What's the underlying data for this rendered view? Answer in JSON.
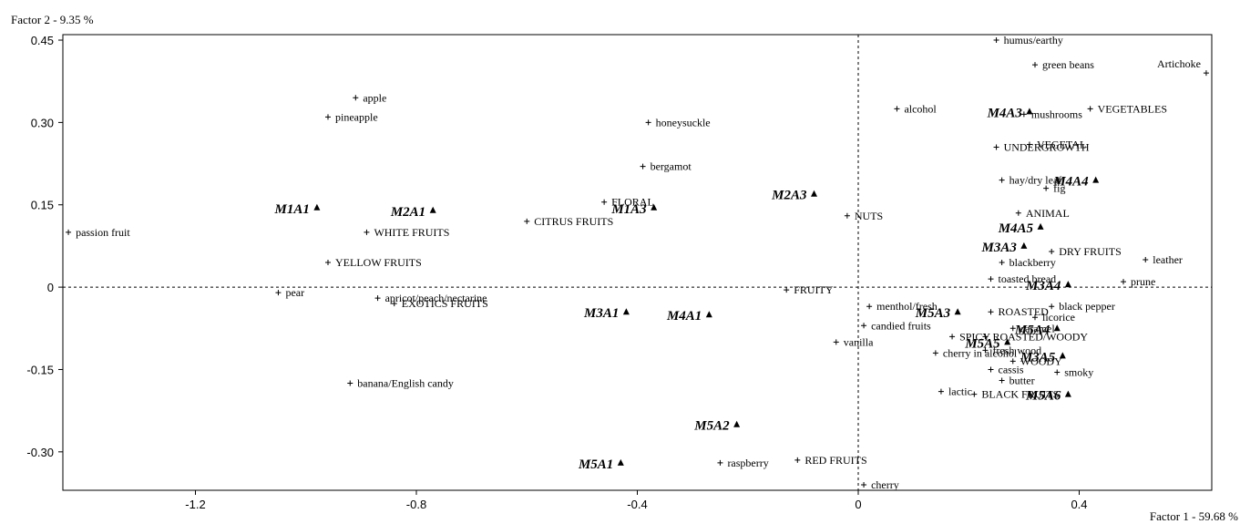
{
  "chart_data": {
    "type": "scatter",
    "title": "",
    "xlabel": "Factor 1  -  59.68 %",
    "ylabel": "Factor 2  -  9.35 %",
    "xlim": [
      -1.44,
      0.64
    ],
    "ylim": [
      -0.37,
      0.46
    ],
    "x_ticks": [
      -1.2,
      -0.8,
      -0.4,
      0,
      0.4
    ],
    "x_tick_labels": [
      "-1.2",
      "-0.8",
      "-0.4",
      "0",
      "0.4"
    ],
    "y_ticks": [
      0.45,
      0.3,
      0.15,
      0,
      -0.15,
      -0.3
    ],
    "y_tick_labels": [
      "0.45",
      "0.30",
      "0.15",
      "0",
      "-0.15",
      "-0.30"
    ],
    "grid": false,
    "zero_lines": true,
    "series": [
      {
        "marker": "triangle",
        "points": [
          {
            "label": "M1A1",
            "x": -0.98,
            "y": 0.145
          },
          {
            "label": "M2A1",
            "x": -0.77,
            "y": 0.14
          },
          {
            "label": "M1A3",
            "x": -0.37,
            "y": 0.145
          },
          {
            "label": "M2A3",
            "x": -0.08,
            "y": 0.17
          },
          {
            "label": "M4A3",
            "x": 0.31,
            "y": 0.32
          },
          {
            "label": "M4A4",
            "x": 0.43,
            "y": 0.195
          },
          {
            "label": "M4A5",
            "x": 0.33,
            "y": 0.11
          },
          {
            "label": "M3A3",
            "x": 0.3,
            "y": 0.075
          },
          {
            "label": "M3A4",
            "x": 0.38,
            "y": 0.005
          },
          {
            "label": "M3A1",
            "x": -0.42,
            "y": -0.045
          },
          {
            "label": "M4A1",
            "x": -0.27,
            "y": -0.05
          },
          {
            "label": "M5A3",
            "x": 0.18,
            "y": -0.045
          },
          {
            "label": "M5A5",
            "x": 0.27,
            "y": -0.1
          },
          {
            "label": "M5A4",
            "x": 0.36,
            "y": -0.075
          },
          {
            "label": "M3A5",
            "x": 0.37,
            "y": -0.125
          },
          {
            "label": "M5A6",
            "x": 0.38,
            "y": -0.195
          },
          {
            "label": "M5A2",
            "x": -0.22,
            "y": -0.25
          },
          {
            "label": "M5A1",
            "x": -0.43,
            "y": -0.32
          }
        ]
      },
      {
        "marker": "plus",
        "points": [
          {
            "label": "passion fruit",
            "x": -1.43,
            "y": 0.1
          },
          {
            "label": "pineapple",
            "x": -0.96,
            "y": 0.31
          },
          {
            "label": "apple",
            "x": -0.91,
            "y": 0.345
          },
          {
            "label": "YELLOW FRUITS",
            "x": -0.96,
            "y": 0.045
          },
          {
            "label": "WHITE FRUITS",
            "x": -0.89,
            "y": 0.1
          },
          {
            "label": "pear",
            "x": -1.05,
            "y": -0.01
          },
          {
            "label": "apricot/peach/nectarine",
            "x": -0.87,
            "y": -0.02
          },
          {
            "label": "EXOTICS FRUITS",
            "x": -0.84,
            "y": -0.03
          },
          {
            "label": "banana/English candy",
            "x": -0.92,
            "y": -0.175
          },
          {
            "label": "CITRUS FRUITS",
            "x": -0.6,
            "y": 0.12
          },
          {
            "label": "FLORAL",
            "x": -0.46,
            "y": 0.155
          },
          {
            "label": "honeysuckle",
            "x": -0.38,
            "y": 0.3
          },
          {
            "label": "bergamot",
            "x": -0.39,
            "y": 0.22
          },
          {
            "label": "NUTS",
            "x": -0.02,
            "y": 0.13
          },
          {
            "label": "FRUITY",
            "x": -0.13,
            "y": -0.005
          },
          {
            "label": "RED FRUITS",
            "x": -0.11,
            "y": -0.315
          },
          {
            "label": "raspberry",
            "x": -0.25,
            "y": -0.32
          },
          {
            "label": "cherry",
            "x": 0.01,
            "y": -0.36
          },
          {
            "label": "humus/earthy",
            "x": 0.25,
            "y": 0.45
          },
          {
            "label": "green beans",
            "x": 0.32,
            "y": 0.405
          },
          {
            "label": "Artichoke",
            "x": 0.63,
            "y": 0.39
          },
          {
            "label": "alcohol",
            "x": 0.07,
            "y": 0.325
          },
          {
            "label": "mushrooms",
            "x": 0.3,
            "y": 0.315
          },
          {
            "label": "VEGETABLES",
            "x": 0.42,
            "y": 0.325
          },
          {
            "label": "UNDERGROWTH",
            "x": 0.25,
            "y": 0.255
          },
          {
            "label": "VEGETAL",
            "x": 0.31,
            "y": 0.26
          },
          {
            "label": "hay/dry leaf",
            "x": 0.26,
            "y": 0.195
          },
          {
            "label": "fig",
            "x": 0.34,
            "y": 0.18
          },
          {
            "label": "ANIMAL",
            "x": 0.29,
            "y": 0.135
          },
          {
            "label": "DRY FRUITS",
            "x": 0.35,
            "y": 0.065
          },
          {
            "label": "leather",
            "x": 0.52,
            "y": 0.05
          },
          {
            "label": "blackberry",
            "x": 0.26,
            "y": 0.045
          },
          {
            "label": "toasted bread",
            "x": 0.24,
            "y": 0.015
          },
          {
            "label": "prune",
            "x": 0.48,
            "y": 0.01
          },
          {
            "label": "menthol/fresh",
            "x": 0.02,
            "y": -0.035
          },
          {
            "label": "ROASTED",
            "x": 0.24,
            "y": -0.045
          },
          {
            "label": "black pepper",
            "x": 0.35,
            "y": -0.035
          },
          {
            "label": "candied fruits",
            "x": 0.01,
            "y": -0.07
          },
          {
            "label": "caramel",
            "x": 0.28,
            "y": -0.075
          },
          {
            "label": "licorice",
            "x": 0.32,
            "y": -0.055
          },
          {
            "label": "SPICY",
            "x": 0.17,
            "y": -0.09
          },
          {
            "label": "ROASTED/WOODY",
            "x": 0.23,
            "y": -0.09
          },
          {
            "label": "vanilla",
            "x": -0.04,
            "y": -0.1
          },
          {
            "label": "fresh wood",
            "x": 0.23,
            "y": -0.115
          },
          {
            "label": "cherry in alcohol",
            "x": 0.14,
            "y": -0.12
          },
          {
            "label": "cassis",
            "x": 0.24,
            "y": -0.15
          },
          {
            "label": "WOODY",
            "x": 0.28,
            "y": -0.135
          },
          {
            "label": "butter",
            "x": 0.26,
            "y": -0.17
          },
          {
            "label": "smoky",
            "x": 0.36,
            "y": -0.155
          },
          {
            "label": "lactic",
            "x": 0.15,
            "y": -0.19
          },
          {
            "label": "BLACK FRUITS",
            "x": 0.21,
            "y": -0.195
          }
        ]
      }
    ]
  }
}
